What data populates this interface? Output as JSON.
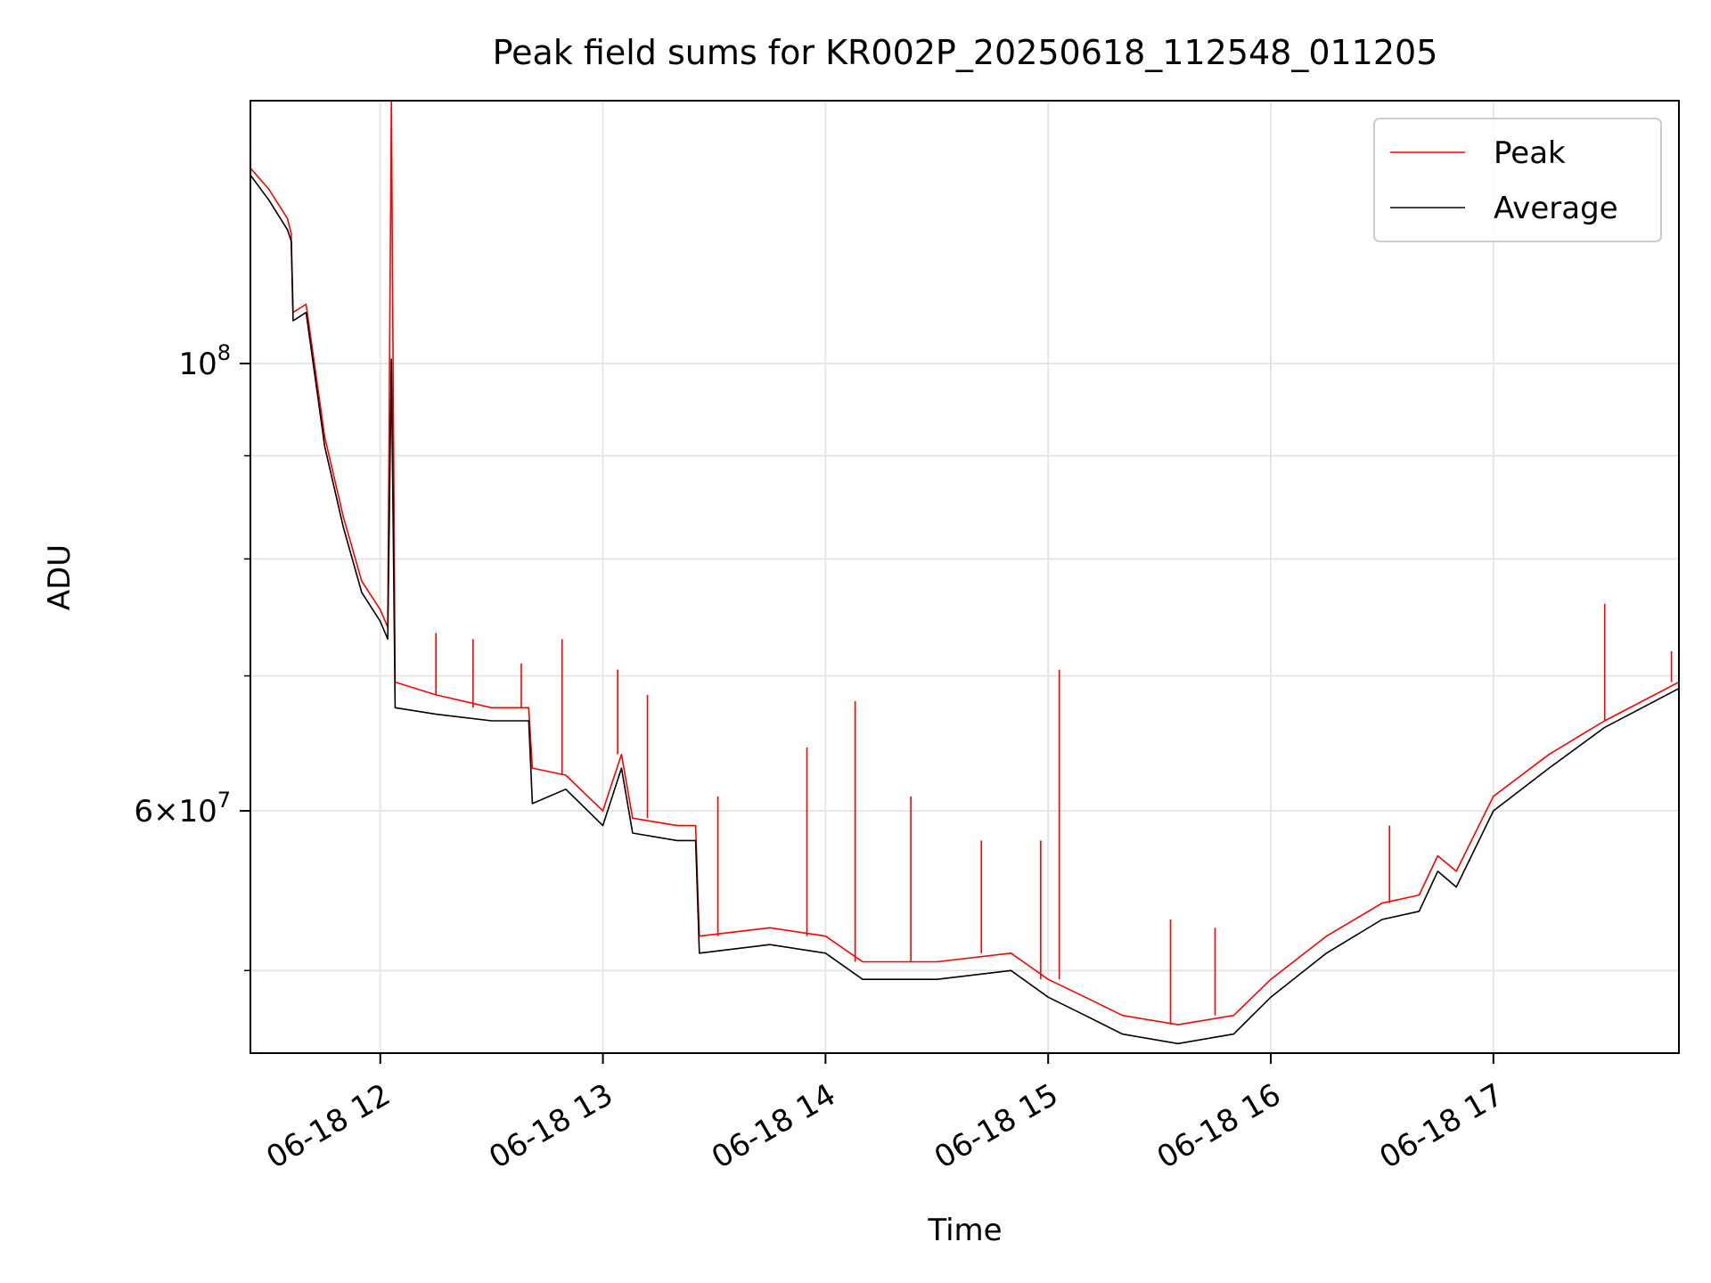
{
  "chart_data": {
    "type": "line",
    "title": "Peak field sums for KR002P_20250618_112548_011205",
    "xlabel": "Time",
    "ylabel": "ADU",
    "yscale": "log",
    "xlim": [
      "2025-06-18T11:25",
      "2025-06-18T17:50"
    ],
    "ylim": [
      45500000,
      135000000
    ],
    "grid": true,
    "legend_position": "upper right",
    "x_ticks": [
      {
        "t": "2025-06-18T12:00",
        "label": "06-18 12"
      },
      {
        "t": "2025-06-18T13:00",
        "label": "06-18 13"
      },
      {
        "t": "2025-06-18T14:00",
        "label": "06-18 14"
      },
      {
        "t": "2025-06-18T15:00",
        "label": "06-18 15"
      },
      {
        "t": "2025-06-18T16:00",
        "label": "06-18 16"
      },
      {
        "t": "2025-06-18T17:00",
        "label": "06-18 17"
      }
    ],
    "y_major_ticks": [
      {
        "value": 100000000,
        "base": "10",
        "exp": "8"
      },
      {
        "value": 60000000,
        "mant": "6",
        "base": "10",
        "exp": "7"
      }
    ],
    "y_minor_ticks": [
      50000000,
      70000000,
      80000000,
      90000000
    ],
    "series": [
      {
        "name": "Peak",
        "color": "#ff0000",
        "points": [
          [
            "2025-06-18T11:25",
            125000000
          ],
          [
            "2025-06-18T11:30",
            122000000
          ],
          [
            "2025-06-18T11:35",
            118000000
          ],
          [
            "2025-06-18T11:36",
            116000000
          ],
          [
            "2025-06-18T11:36.5",
            106000000
          ],
          [
            "2025-06-18T11:40",
            107000000
          ],
          [
            "2025-06-18T11:45",
            92000000
          ],
          [
            "2025-06-18T11:50",
            84000000
          ],
          [
            "2025-06-18T11:55",
            78000000
          ],
          [
            "2025-06-18T12:00",
            75500000
          ],
          [
            "2025-06-18T12:02",
            74000000
          ],
          [
            "2025-06-18T12:03",
            135000000
          ],
          [
            "2025-06-18T12:04",
            69500000
          ],
          [
            "2025-06-18T12:15",
            68500000
          ],
          [
            "2025-06-18T12:30",
            67500000
          ],
          [
            "2025-06-18T12:40",
            67500000
          ],
          [
            "2025-06-18T12:41",
            63000000
          ],
          [
            "2025-06-18T12:50",
            62500000
          ],
          [
            "2025-06-18T13:00",
            60000000
          ],
          [
            "2025-06-18T13:05",
            64000000
          ],
          [
            "2025-06-18T13:08",
            59500000
          ],
          [
            "2025-06-18T13:20",
            59000000
          ],
          [
            "2025-06-18T13:25",
            59000000
          ],
          [
            "2025-06-18T13:26",
            52000000
          ],
          [
            "2025-06-18T13:45",
            52500000
          ],
          [
            "2025-06-18T14:00",
            52000000
          ],
          [
            "2025-06-18T14:10",
            50500000
          ],
          [
            "2025-06-18T14:30",
            50500000
          ],
          [
            "2025-06-18T14:50",
            51000000
          ],
          [
            "2025-06-18T15:00",
            49500000
          ],
          [
            "2025-06-18T15:10",
            48500000
          ],
          [
            "2025-06-18T15:20",
            47500000
          ],
          [
            "2025-06-18T15:35",
            47000000
          ],
          [
            "2025-06-18T15:50",
            47500000
          ],
          [
            "2025-06-18T16:00",
            49500000
          ],
          [
            "2025-06-18T16:15",
            52000000
          ],
          [
            "2025-06-18T16:30",
            54000000
          ],
          [
            "2025-06-18T16:40",
            54500000
          ],
          [
            "2025-06-18T16:45",
            57000000
          ],
          [
            "2025-06-18T16:50",
            56000000
          ],
          [
            "2025-06-18T17:00",
            61000000
          ],
          [
            "2025-06-18T17:15",
            64000000
          ],
          [
            "2025-06-18T17:30",
            66500000
          ],
          [
            "2025-06-18T17:50",
            69500000
          ]
        ],
        "spikes": [
          [
            "2025-06-18T12:03",
            135000000
          ],
          [
            "2025-06-18T12:15",
            73500000
          ],
          [
            "2025-06-18T12:25",
            73000000
          ],
          [
            "2025-06-18T12:38",
            71000000
          ],
          [
            "2025-06-18T12:49",
            73000000
          ],
          [
            "2025-06-18T13:04",
            70500000
          ],
          [
            "2025-06-18T13:12",
            68500000
          ],
          [
            "2025-06-18T13:31",
            61000000
          ],
          [
            "2025-06-18T13:55",
            64500000
          ],
          [
            "2025-06-18T14:08",
            68000000
          ],
          [
            "2025-06-18T14:23",
            61000000
          ],
          [
            "2025-06-18T14:42",
            58000000
          ],
          [
            "2025-06-18T14:58",
            58000000
          ],
          [
            "2025-06-18T15:03",
            70500000
          ],
          [
            "2025-06-18T15:33",
            53000000
          ],
          [
            "2025-06-18T15:45",
            52500000
          ],
          [
            "2025-06-18T16:32",
            59000000
          ],
          [
            "2025-06-18T17:30",
            76000000
          ],
          [
            "2025-06-18T17:48",
            72000000
          ]
        ]
      },
      {
        "name": "Average",
        "color": "#000000",
        "points": [
          [
            "2025-06-18T11:25",
            124000000
          ],
          [
            "2025-06-18T11:30",
            120500000
          ],
          [
            "2025-06-18T11:35",
            116500000
          ],
          [
            "2025-06-18T11:36",
            115000000
          ],
          [
            "2025-06-18T11:36.5",
            105000000
          ],
          [
            "2025-06-18T11:40",
            106000000
          ],
          [
            "2025-06-18T11:45",
            91000000
          ],
          [
            "2025-06-18T11:50",
            83000000
          ],
          [
            "2025-06-18T11:55",
            77000000
          ],
          [
            "2025-06-18T12:00",
            74500000
          ],
          [
            "2025-06-18T12:02",
            73000000
          ],
          [
            "2025-06-18T12:03",
            100500000
          ],
          [
            "2025-06-18T12:04",
            67500000
          ],
          [
            "2025-06-18T12:15",
            67000000
          ],
          [
            "2025-06-18T12:30",
            66500000
          ],
          [
            "2025-06-18T12:40",
            66500000
          ],
          [
            "2025-06-18T12:41",
            60500000
          ],
          [
            "2025-06-18T12:50",
            61500000
          ],
          [
            "2025-06-18T13:00",
            59000000
          ],
          [
            "2025-06-18T13:05",
            63000000
          ],
          [
            "2025-06-18T13:08",
            58500000
          ],
          [
            "2025-06-18T13:20",
            58000000
          ],
          [
            "2025-06-18T13:25",
            58000000
          ],
          [
            "2025-06-18T13:26",
            51000000
          ],
          [
            "2025-06-18T13:45",
            51500000
          ],
          [
            "2025-06-18T14:00",
            51000000
          ],
          [
            "2025-06-18T14:10",
            49500000
          ],
          [
            "2025-06-18T14:30",
            49500000
          ],
          [
            "2025-06-18T14:50",
            50000000
          ],
          [
            "2025-06-18T15:00",
            48500000
          ],
          [
            "2025-06-18T15:10",
            47500000
          ],
          [
            "2025-06-18T15:20",
            46500000
          ],
          [
            "2025-06-18T15:35",
            46000000
          ],
          [
            "2025-06-18T15:50",
            46500000
          ],
          [
            "2025-06-18T16:00",
            48500000
          ],
          [
            "2025-06-18T16:15",
            51000000
          ],
          [
            "2025-06-18T16:30",
            53000000
          ],
          [
            "2025-06-18T16:40",
            53500000
          ],
          [
            "2025-06-18T16:45",
            56000000
          ],
          [
            "2025-06-18T16:50",
            55000000
          ],
          [
            "2025-06-18T17:00",
            60000000
          ],
          [
            "2025-06-18T17:15",
            63000000
          ],
          [
            "2025-06-18T17:30",
            66000000
          ],
          [
            "2025-06-18T17:50",
            69000000
          ]
        ]
      }
    ]
  }
}
